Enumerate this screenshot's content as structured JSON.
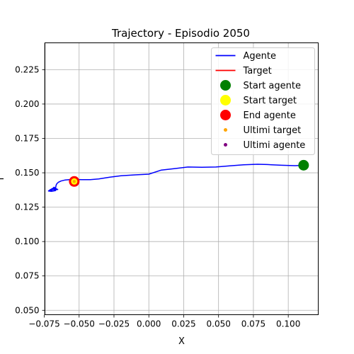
{
  "chart_data": {
    "type": "line",
    "title": "Trajectory - Episodio 2050",
    "xlabel": "X",
    "ylabel": "Y",
    "xlim": [
      -0.0745,
      0.1215
    ],
    "ylim": [
      0.0468,
      0.2445
    ],
    "xticks": [
      -0.075,
      -0.05,
      -0.025,
      0.0,
      0.025,
      0.05,
      0.075,
      0.1
    ],
    "xtick_labels": [
      "−0.075",
      "−0.050",
      "−0.025",
      "0.000",
      "0.025",
      "0.050",
      "0.075",
      "0.100"
    ],
    "yticks": [
      0.05,
      0.075,
      0.1,
      0.125,
      0.15,
      0.175,
      0.2,
      0.225
    ],
    "ytick_labels": [
      "0.050",
      "0.075",
      "0.100",
      "0.125",
      "0.150",
      "0.175",
      "0.200",
      "0.225"
    ],
    "grid": true,
    "legend_position": "top-right",
    "legend": [
      {
        "label": "Agente",
        "kind": "line",
        "color": "#0000ff"
      },
      {
        "label": "Target",
        "kind": "line",
        "color": "#ff0000"
      },
      {
        "label": "Start agente",
        "kind": "marker",
        "color": "#008000",
        "size": "large"
      },
      {
        "label": "Start target",
        "kind": "marker",
        "color": "#ffff00",
        "size": "large"
      },
      {
        "label": "End agente",
        "kind": "marker",
        "color": "#ff0000",
        "size": "large"
      },
      {
        "label": "Ultimi target",
        "kind": "marker",
        "color": "#ffa500",
        "size": "small"
      },
      {
        "label": "Ultimi agente",
        "kind": "marker",
        "color": "#800080",
        "size": "small"
      }
    ],
    "series": [
      {
        "name": "Agente",
        "color": "#0000ff",
        "x": [
          0.111,
          0.105,
          0.095,
          0.085,
          0.078,
          0.068,
          0.058,
          0.048,
          0.038,
          0.028,
          0.018,
          0.009,
          0.0,
          -0.01,
          -0.02,
          -0.028,
          -0.036,
          -0.042,
          -0.048,
          -0.055,
          -0.06,
          -0.063,
          -0.065,
          -0.066,
          -0.0665,
          -0.067,
          -0.069,
          -0.07,
          -0.068,
          -0.066,
          -0.069,
          -0.071,
          -0.068,
          -0.067,
          -0.07,
          -0.072,
          -0.069,
          -0.067,
          -0.065
        ],
        "y": [
          0.1555,
          0.1552,
          0.1555,
          0.156,
          0.1562,
          0.1558,
          0.155,
          0.1542,
          0.154,
          0.1542,
          0.153,
          0.152,
          0.149,
          0.1485,
          0.1478,
          0.1468,
          0.1455,
          0.145,
          0.145,
          0.1452,
          0.1448,
          0.144,
          0.143,
          0.142,
          0.141,
          0.1385,
          0.138,
          0.137,
          0.1395,
          0.1382,
          0.1368,
          0.1375,
          0.1392,
          0.137,
          0.1365,
          0.1368,
          0.1385,
          0.1375,
          0.138
        ]
      },
      {
        "name": "Start agente",
        "kind": "point",
        "color": "#008000",
        "x": [
          0.111
        ],
        "y": [
          0.1555
        ]
      },
      {
        "name": "End agente",
        "kind": "point",
        "color": "#ff0000",
        "x": [
          -0.0535
        ],
        "y": [
          0.1437
        ]
      },
      {
        "name": "Start target",
        "kind": "point",
        "color": "#ffff00",
        "x": [
          -0.0535
        ],
        "y": [
          0.1437
        ]
      },
      {
        "name": "Ultimi target",
        "kind": "point",
        "color": "#ffa500",
        "x": [
          -0.0535
        ],
        "y": [
          0.1437
        ]
      }
    ]
  }
}
